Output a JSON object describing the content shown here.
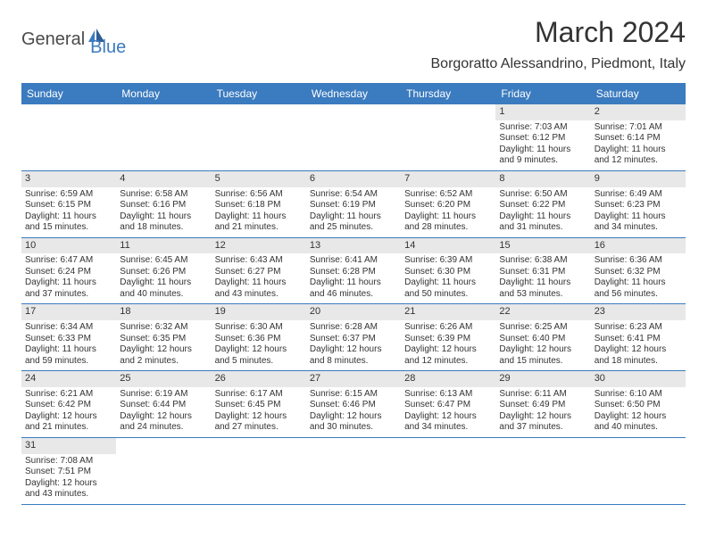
{
  "logo": {
    "text1": "General",
    "text2": "Blue"
  },
  "title": "March 2024",
  "location": "Borgoratto Alessandrino, Piedmont, Italy",
  "colors": {
    "header_bg": "#3b7bbf",
    "header_text": "#ffffff",
    "daynum_bg": "#e8e8e8",
    "border": "#3b7bbf",
    "text": "#333333"
  },
  "day_headers": [
    "Sunday",
    "Monday",
    "Tuesday",
    "Wednesday",
    "Thursday",
    "Friday",
    "Saturday"
  ],
  "weeks": [
    [
      {
        "n": "",
        "sunrise": "",
        "sunset": "",
        "daylight1": "",
        "daylight2": ""
      },
      {
        "n": "",
        "sunrise": "",
        "sunset": "",
        "daylight1": "",
        "daylight2": ""
      },
      {
        "n": "",
        "sunrise": "",
        "sunset": "",
        "daylight1": "",
        "daylight2": ""
      },
      {
        "n": "",
        "sunrise": "",
        "sunset": "",
        "daylight1": "",
        "daylight2": ""
      },
      {
        "n": "",
        "sunrise": "",
        "sunset": "",
        "daylight1": "",
        "daylight2": ""
      },
      {
        "n": "1",
        "sunrise": "Sunrise: 7:03 AM",
        "sunset": "Sunset: 6:12 PM",
        "daylight1": "Daylight: 11 hours",
        "daylight2": "and 9 minutes."
      },
      {
        "n": "2",
        "sunrise": "Sunrise: 7:01 AM",
        "sunset": "Sunset: 6:14 PM",
        "daylight1": "Daylight: 11 hours",
        "daylight2": "and 12 minutes."
      }
    ],
    [
      {
        "n": "3",
        "sunrise": "Sunrise: 6:59 AM",
        "sunset": "Sunset: 6:15 PM",
        "daylight1": "Daylight: 11 hours",
        "daylight2": "and 15 minutes."
      },
      {
        "n": "4",
        "sunrise": "Sunrise: 6:58 AM",
        "sunset": "Sunset: 6:16 PM",
        "daylight1": "Daylight: 11 hours",
        "daylight2": "and 18 minutes."
      },
      {
        "n": "5",
        "sunrise": "Sunrise: 6:56 AM",
        "sunset": "Sunset: 6:18 PM",
        "daylight1": "Daylight: 11 hours",
        "daylight2": "and 21 minutes."
      },
      {
        "n": "6",
        "sunrise": "Sunrise: 6:54 AM",
        "sunset": "Sunset: 6:19 PM",
        "daylight1": "Daylight: 11 hours",
        "daylight2": "and 25 minutes."
      },
      {
        "n": "7",
        "sunrise": "Sunrise: 6:52 AM",
        "sunset": "Sunset: 6:20 PM",
        "daylight1": "Daylight: 11 hours",
        "daylight2": "and 28 minutes."
      },
      {
        "n": "8",
        "sunrise": "Sunrise: 6:50 AM",
        "sunset": "Sunset: 6:22 PM",
        "daylight1": "Daylight: 11 hours",
        "daylight2": "and 31 minutes."
      },
      {
        "n": "9",
        "sunrise": "Sunrise: 6:49 AM",
        "sunset": "Sunset: 6:23 PM",
        "daylight1": "Daylight: 11 hours",
        "daylight2": "and 34 minutes."
      }
    ],
    [
      {
        "n": "10",
        "sunrise": "Sunrise: 6:47 AM",
        "sunset": "Sunset: 6:24 PM",
        "daylight1": "Daylight: 11 hours",
        "daylight2": "and 37 minutes."
      },
      {
        "n": "11",
        "sunrise": "Sunrise: 6:45 AM",
        "sunset": "Sunset: 6:26 PM",
        "daylight1": "Daylight: 11 hours",
        "daylight2": "and 40 minutes."
      },
      {
        "n": "12",
        "sunrise": "Sunrise: 6:43 AM",
        "sunset": "Sunset: 6:27 PM",
        "daylight1": "Daylight: 11 hours",
        "daylight2": "and 43 minutes."
      },
      {
        "n": "13",
        "sunrise": "Sunrise: 6:41 AM",
        "sunset": "Sunset: 6:28 PM",
        "daylight1": "Daylight: 11 hours",
        "daylight2": "and 46 minutes."
      },
      {
        "n": "14",
        "sunrise": "Sunrise: 6:39 AM",
        "sunset": "Sunset: 6:30 PM",
        "daylight1": "Daylight: 11 hours",
        "daylight2": "and 50 minutes."
      },
      {
        "n": "15",
        "sunrise": "Sunrise: 6:38 AM",
        "sunset": "Sunset: 6:31 PM",
        "daylight1": "Daylight: 11 hours",
        "daylight2": "and 53 minutes."
      },
      {
        "n": "16",
        "sunrise": "Sunrise: 6:36 AM",
        "sunset": "Sunset: 6:32 PM",
        "daylight1": "Daylight: 11 hours",
        "daylight2": "and 56 minutes."
      }
    ],
    [
      {
        "n": "17",
        "sunrise": "Sunrise: 6:34 AM",
        "sunset": "Sunset: 6:33 PM",
        "daylight1": "Daylight: 11 hours",
        "daylight2": "and 59 minutes."
      },
      {
        "n": "18",
        "sunrise": "Sunrise: 6:32 AM",
        "sunset": "Sunset: 6:35 PM",
        "daylight1": "Daylight: 12 hours",
        "daylight2": "and 2 minutes."
      },
      {
        "n": "19",
        "sunrise": "Sunrise: 6:30 AM",
        "sunset": "Sunset: 6:36 PM",
        "daylight1": "Daylight: 12 hours",
        "daylight2": "and 5 minutes."
      },
      {
        "n": "20",
        "sunrise": "Sunrise: 6:28 AM",
        "sunset": "Sunset: 6:37 PM",
        "daylight1": "Daylight: 12 hours",
        "daylight2": "and 8 minutes."
      },
      {
        "n": "21",
        "sunrise": "Sunrise: 6:26 AM",
        "sunset": "Sunset: 6:39 PM",
        "daylight1": "Daylight: 12 hours",
        "daylight2": "and 12 minutes."
      },
      {
        "n": "22",
        "sunrise": "Sunrise: 6:25 AM",
        "sunset": "Sunset: 6:40 PM",
        "daylight1": "Daylight: 12 hours",
        "daylight2": "and 15 minutes."
      },
      {
        "n": "23",
        "sunrise": "Sunrise: 6:23 AM",
        "sunset": "Sunset: 6:41 PM",
        "daylight1": "Daylight: 12 hours",
        "daylight2": "and 18 minutes."
      }
    ],
    [
      {
        "n": "24",
        "sunrise": "Sunrise: 6:21 AM",
        "sunset": "Sunset: 6:42 PM",
        "daylight1": "Daylight: 12 hours",
        "daylight2": "and 21 minutes."
      },
      {
        "n": "25",
        "sunrise": "Sunrise: 6:19 AM",
        "sunset": "Sunset: 6:44 PM",
        "daylight1": "Daylight: 12 hours",
        "daylight2": "and 24 minutes."
      },
      {
        "n": "26",
        "sunrise": "Sunrise: 6:17 AM",
        "sunset": "Sunset: 6:45 PM",
        "daylight1": "Daylight: 12 hours",
        "daylight2": "and 27 minutes."
      },
      {
        "n": "27",
        "sunrise": "Sunrise: 6:15 AM",
        "sunset": "Sunset: 6:46 PM",
        "daylight1": "Daylight: 12 hours",
        "daylight2": "and 30 minutes."
      },
      {
        "n": "28",
        "sunrise": "Sunrise: 6:13 AM",
        "sunset": "Sunset: 6:47 PM",
        "daylight1": "Daylight: 12 hours",
        "daylight2": "and 34 minutes."
      },
      {
        "n": "29",
        "sunrise": "Sunrise: 6:11 AM",
        "sunset": "Sunset: 6:49 PM",
        "daylight1": "Daylight: 12 hours",
        "daylight2": "and 37 minutes."
      },
      {
        "n": "30",
        "sunrise": "Sunrise: 6:10 AM",
        "sunset": "Sunset: 6:50 PM",
        "daylight1": "Daylight: 12 hours",
        "daylight2": "and 40 minutes."
      }
    ],
    [
      {
        "n": "31",
        "sunrise": "Sunrise: 7:08 AM",
        "sunset": "Sunset: 7:51 PM",
        "daylight1": "Daylight: 12 hours",
        "daylight2": "and 43 minutes."
      },
      {
        "n": "",
        "sunrise": "",
        "sunset": "",
        "daylight1": "",
        "daylight2": ""
      },
      {
        "n": "",
        "sunrise": "",
        "sunset": "",
        "daylight1": "",
        "daylight2": ""
      },
      {
        "n": "",
        "sunrise": "",
        "sunset": "",
        "daylight1": "",
        "daylight2": ""
      },
      {
        "n": "",
        "sunrise": "",
        "sunset": "",
        "daylight1": "",
        "daylight2": ""
      },
      {
        "n": "",
        "sunrise": "",
        "sunset": "",
        "daylight1": "",
        "daylight2": ""
      },
      {
        "n": "",
        "sunrise": "",
        "sunset": "",
        "daylight1": "",
        "daylight2": ""
      }
    ]
  ]
}
